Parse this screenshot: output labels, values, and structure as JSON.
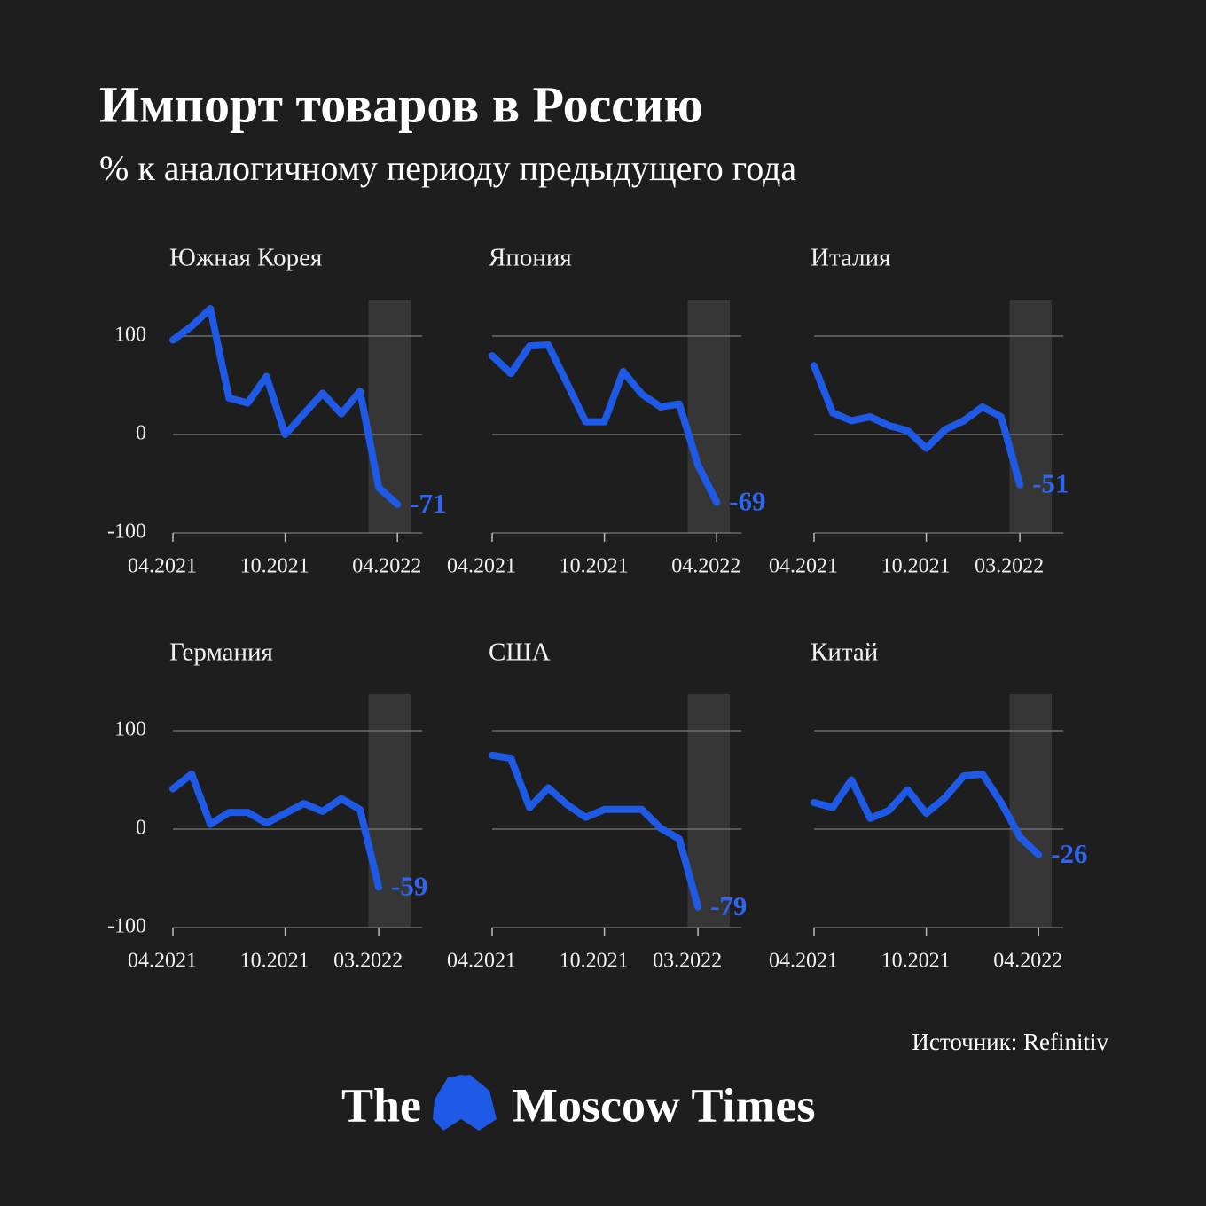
{
  "title": "Импорт товаров в Россию",
  "subtitle": "% к аналогичному периоду предыдущего года",
  "source": "Источник: Refinitiv",
  "logo": {
    "left": "The",
    "right": "Moscow Times"
  },
  "chart_data": [
    {
      "type": "line",
      "title": "Южная Корея",
      "categories": [
        "04.2021",
        null,
        null,
        null,
        null,
        null,
        "10.2021",
        null,
        null,
        null,
        null,
        null,
        "04.2022"
      ],
      "values": [
        96,
        110,
        128,
        37,
        32,
        59,
        0,
        21,
        42,
        21,
        44,
        -54,
        -71
      ],
      "color": "#1f5ae6",
      "ylim": [
        -100,
        137
      ],
      "yticks": [
        -100,
        0,
        100
      ]
    },
    {
      "type": "line",
      "title": "Япония",
      "categories": [
        "04.2021",
        null,
        null,
        null,
        null,
        null,
        "10.2021",
        null,
        null,
        null,
        null,
        null,
        "04.2022"
      ],
      "values": [
        80,
        62,
        90,
        91,
        52,
        13,
        13,
        64,
        41,
        28,
        31,
        -31,
        -69
      ],
      "color": "#1f5ae6",
      "ylim": [
        -100,
        137
      ],
      "yticks": [
        -100,
        0,
        100
      ]
    },
    {
      "type": "line",
      "title": "Италия",
      "categories": [
        "04.2021",
        null,
        null,
        null,
        null,
        null,
        "10.2021",
        null,
        null,
        null,
        null,
        "03.2022",
        null
      ],
      "values": [
        70,
        22,
        14,
        18,
        9,
        4,
        -14,
        5,
        14,
        28,
        18,
        -51,
        null
      ],
      "color": "#1f5ae6",
      "ylim": [
        -100,
        137
      ],
      "yticks": [
        -100,
        0,
        100
      ]
    },
    {
      "type": "line",
      "title": "Германия",
      "categories": [
        "04.2021",
        null,
        null,
        null,
        null,
        null,
        "10.2021",
        null,
        null,
        null,
        null,
        "03.2022",
        null
      ],
      "values": [
        41,
        56,
        5,
        17,
        17,
        6,
        16,
        26,
        18,
        31,
        20,
        -59,
        null
      ],
      "color": "#1f5ae6",
      "ylim": [
        -100,
        137
      ],
      "yticks": [
        -100,
        0,
        100
      ]
    },
    {
      "type": "line",
      "title": "США",
      "categories": [
        "04.2021",
        null,
        null,
        null,
        null,
        null,
        "10.2021",
        null,
        null,
        null,
        null,
        "03.2022",
        null
      ],
      "values": [
        75,
        72,
        22,
        42,
        25,
        12,
        20,
        20,
        20,
        1,
        -10,
        -79,
        null
      ],
      "color": "#1f5ae6",
      "ylim": [
        -100,
        137
      ],
      "yticks": [
        -100,
        0,
        100
      ]
    },
    {
      "type": "line",
      "title": "Китай",
      "categories": [
        "04.2021",
        null,
        null,
        null,
        null,
        null,
        "10.2021",
        null,
        null,
        null,
        null,
        null,
        "04.2022"
      ],
      "values": [
        27,
        22,
        50,
        11,
        19,
        40,
        16,
        32,
        54,
        56,
        27,
        -8,
        -26
      ],
      "color": "#1f5ae6",
      "ylim": [
        -100,
        137
      ],
      "yticks": [
        -100,
        0,
        100
      ]
    }
  ]
}
